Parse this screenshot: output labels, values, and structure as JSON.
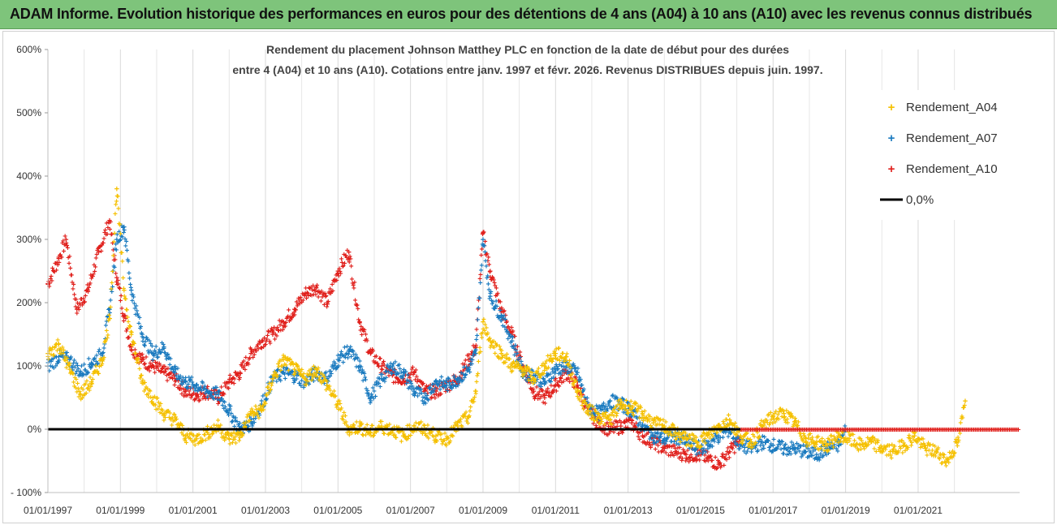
{
  "banner": {
    "text": "ADAM Informe. Evolution historique des performances en euros pour des détentions de 4 ans (A04) à 10 ans (A10) avec les revenus connus distribués"
  },
  "chart_data": {
    "type": "scatter",
    "title_lines": [
      "Rendement du placement Johnson Matthey PLC en fonction de la date de début pour des durées",
      "entre 4 (A04) et 10 ans (A10). Cotations entre janv. 1997 et févr. 2026. Revenus DISTRIBUES depuis juin. 1997."
    ],
    "xlabel": "",
    "ylabel": "",
    "ylim": [
      -100,
      600
    ],
    "yticks": [
      -100,
      0,
      100,
      200,
      300,
      400,
      500,
      600
    ],
    "ytick_labels": [
      "- 100%",
      "0%",
      "100%",
      "200%",
      "300%",
      "400%",
      "500%",
      "600%"
    ],
    "xlim": [
      1997.0,
      2023.8
    ],
    "xticks": [
      1997,
      1999,
      2001,
      2003,
      2005,
      2007,
      2009,
      2011,
      2013,
      2015,
      2017,
      2019,
      2021
    ],
    "xtick_labels": [
      "01/01/1997",
      "01/01/1999",
      "01/01/2001",
      "01/01/2003",
      "01/01/2005",
      "01/01/2007",
      "01/01/2009",
      "01/01/2011",
      "01/01/2013",
      "01/01/2015",
      "01/01/2017",
      "01/01/2019",
      "01/01/2021"
    ],
    "grid": "vertical",
    "legend_position": "right",
    "reference_line": {
      "name": "0,0%",
      "value": 0,
      "color": "#000000"
    },
    "series": [
      {
        "name": "Rendement_A04",
        "color": "#f5c000",
        "x": [
          1997.0,
          1997.3,
          1997.6,
          1997.9,
          1998.2,
          1998.5,
          1998.7,
          1998.9,
          1999.1,
          1999.3,
          1999.6,
          1999.9,
          2000.2,
          2000.5,
          2000.8,
          2001.1,
          2001.4,
          2001.7,
          2002.0,
          2002.3,
          2002.6,
          2002.9,
          2003.2,
          2003.5,
          2003.8,
          2004.1,
          2004.4,
          2004.7,
          2005.0,
          2005.3,
          2005.6,
          2005.9,
          2006.2,
          2006.5,
          2006.8,
          2007.1,
          2007.4,
          2007.7,
          2008.0,
          2008.3,
          2008.6,
          2008.8,
          2009.0,
          2009.2,
          2009.5,
          2009.8,
          2010.1,
          2010.4,
          2010.7,
          2011.0,
          2011.3,
          2011.6,
          2011.9,
          2012.2,
          2012.5,
          2012.8,
          2013.1,
          2013.4,
          2013.7,
          2014.0,
          2014.3,
          2014.6,
          2014.9,
          2015.2,
          2015.5,
          2015.8,
          2016.1,
          2016.4,
          2016.7,
          2017.0,
          2017.3,
          2017.6,
          2017.9,
          2018.2,
          2018.5,
          2018.8,
          2019.1,
          2019.4,
          2019.7,
          2020.0,
          2020.3,
          2020.6,
          2020.9,
          2021.2,
          2021.5,
          2021.8,
          2022.1,
          2022.3
        ],
        "values": [
          120,
          135,
          95,
          55,
          75,
          110,
          175,
          380,
          220,
          150,
          75,
          50,
          25,
          15,
          -10,
          -15,
          -5,
          5,
          -15,
          -10,
          25,
          30,
          80,
          110,
          95,
          80,
          95,
          70,
          40,
          0,
          5,
          -5,
          5,
          0,
          -10,
          5,
          0,
          -10,
          -15,
          5,
          20,
          60,
          170,
          140,
          120,
          100,
          95,
          80,
          100,
          120,
          115,
          60,
          30,
          20,
          15,
          40,
          35,
          25,
          10,
          5,
          -5,
          -15,
          -20,
          -10,
          5,
          15,
          -10,
          -20,
          5,
          20,
          25,
          10,
          -15,
          -20,
          -25,
          -10,
          -15,
          -25,
          -20,
          -30,
          -35,
          -25,
          -10,
          -30,
          -35,
          -50,
          -20,
          45
        ]
      },
      {
        "name": "Rendement_A07",
        "color": "#1a7abf",
        "x": [
          1997.0,
          1997.3,
          1997.6,
          1997.9,
          1998.2,
          1998.5,
          1998.7,
          1998.9,
          1999.1,
          1999.3,
          1999.6,
          1999.9,
          2000.2,
          2000.5,
          2000.8,
          2001.1,
          2001.4,
          2001.7,
          2002.0,
          2002.3,
          2002.6,
          2002.9,
          2003.2,
          2003.5,
          2003.8,
          2004.1,
          2004.4,
          2004.7,
          2005.0,
          2005.3,
          2005.6,
          2005.9,
          2006.2,
          2006.5,
          2006.8,
          2007.1,
          2007.4,
          2007.7,
          2008.0,
          2008.3,
          2008.6,
          2008.8,
          2009.0,
          2009.2,
          2009.5,
          2009.8,
          2010.1,
          2010.4,
          2010.7,
          2011.0,
          2011.3,
          2011.6,
          2011.9,
          2012.2,
          2012.5,
          2012.8,
          2013.1,
          2013.4,
          2013.7,
          2014.0,
          2014.3,
          2014.6,
          2014.9,
          2015.2,
          2015.5,
          2015.8,
          2016.1,
          2016.4,
          2016.7,
          2017.0,
          2017.3,
          2017.6,
          2017.9,
          2018.2,
          2018.5,
          2018.8,
          2019.0
        ],
        "values": [
          100,
          115,
          110,
          90,
          105,
          120,
          190,
          300,
          320,
          220,
          150,
          120,
          130,
          90,
          75,
          70,
          60,
          55,
          30,
          0,
          10,
          40,
          80,
          90,
          85,
          75,
          90,
          80,
          110,
          125,
          100,
          50,
          80,
          100,
          90,
          60,
          50,
          75,
          70,
          80,
          95,
          120,
          300,
          210,
          180,
          140,
          90,
          85,
          75,
          95,
          100,
          90,
          35,
          25,
          45,
          40,
          30,
          5,
          -10,
          -15,
          -10,
          -20,
          -30,
          -25,
          -10,
          0,
          -25,
          -30,
          -20,
          -25,
          -30,
          -30,
          -35,
          -40,
          -30,
          -25,
          0
        ]
      },
      {
        "name": "Rendement_A10",
        "color": "#e0201c",
        "x": [
          1997.0,
          1997.3,
          1997.5,
          1997.8,
          1998.1,
          1998.4,
          1998.7,
          1998.9,
          1999.1,
          1999.3,
          1999.6,
          1999.9,
          2000.2,
          2000.5,
          2000.8,
          2001.1,
          2001.4,
          2001.7,
          2002.0,
          2002.3,
          2002.6,
          2002.9,
          2003.2,
          2003.5,
          2003.8,
          2004.1,
          2004.4,
          2004.7,
          2005.0,
          2005.3,
          2005.6,
          2005.9,
          2006.2,
          2006.5,
          2006.8,
          2007.1,
          2007.4,
          2007.7,
          2008.0,
          2008.3,
          2008.6,
          2008.8,
          2009.0,
          2009.2,
          2009.5,
          2009.8,
          2010.1,
          2010.4,
          2010.7,
          2011.0,
          2011.3,
          2011.6,
          2011.9,
          2012.2,
          2012.5,
          2012.8,
          2013.1,
          2013.4,
          2013.7,
          2014.0,
          2014.3,
          2014.6,
          2014.9,
          2015.2,
          2015.5,
          2015.8,
          2016.1
        ],
        "values": [
          230,
          270,
          300,
          190,
          220,
          280,
          330,
          240,
          180,
          130,
          110,
          100,
          90,
          80,
          60,
          55,
          60,
          50,
          75,
          90,
          120,
          140,
          150,
          170,
          190,
          215,
          225,
          200,
          250,
          280,
          170,
          120,
          100,
          85,
          80,
          90,
          60,
          60,
          70,
          80,
          110,
          130,
          310,
          250,
          190,
          150,
          100,
          60,
          50,
          70,
          90,
          70,
          30,
          10,
          0,
          5,
          10,
          -10,
          -20,
          -30,
          -35,
          -40,
          -40,
          -45,
          -55,
          -35,
          -15
        ]
      }
    ]
  }
}
